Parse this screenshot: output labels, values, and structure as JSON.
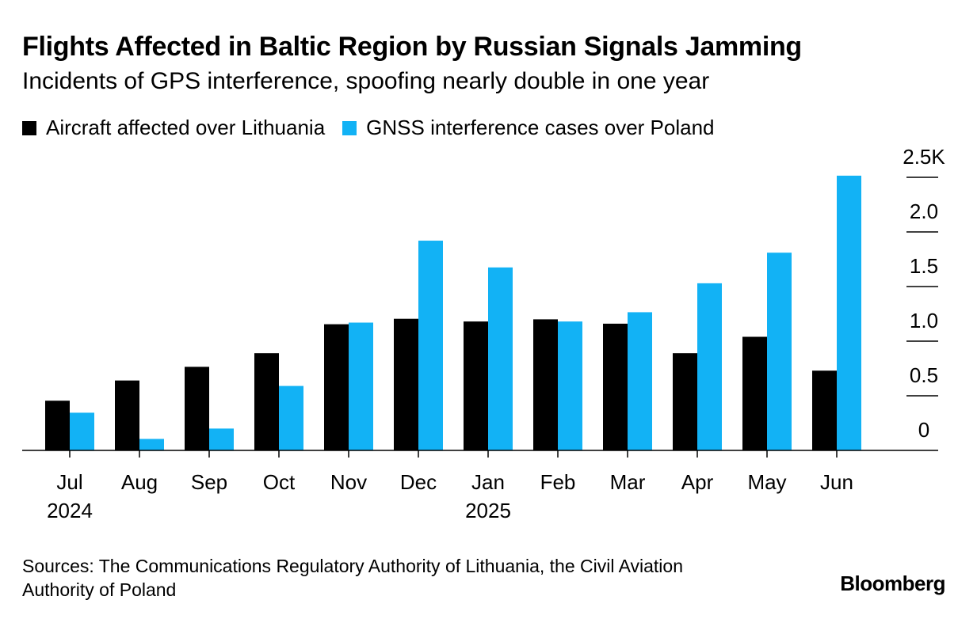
{
  "header": {
    "title": "Flights Affected in Baltic Region by Russian Signals Jamming",
    "subtitle": "Incidents of GPS interference, spoofing nearly double in one year"
  },
  "footer": {
    "source": "Sources: The Communications Regulatory Authority of Lithuania, the Civil Aviation Authority of Poland",
    "brand": "Bloomberg"
  },
  "colors": {
    "lithuania": "#000000",
    "poland": "#12b2f5"
  },
  "chart_data": {
    "type": "bar",
    "title": "Flights Affected in Baltic Region by Russian Signals Jamming",
    "subtitle": "Incidents of GPS interference, spoofing nearly double in one year",
    "categories": [
      "Jul",
      "Aug",
      "Sep",
      "Oct",
      "Nov",
      "Dec",
      "Jan",
      "Feb",
      "Mar",
      "Apr",
      "May",
      "Jun"
    ],
    "year_labels": [
      "2024",
      "",
      "",
      "",
      "",
      "",
      "2025",
      "",
      "",
      "",
      "",
      ""
    ],
    "series": [
      {
        "name": "Aircraft affected over Lithuania",
        "values": [
          455,
          640,
          765,
          890,
          1155,
          1205,
          1180,
          1200,
          1160,
          890,
          1040,
          730
        ]
      },
      {
        "name": "GNSS interference cases over Poland",
        "values": [
          345,
          105,
          200,
          590,
          1170,
          1920,
          1675,
          1180,
          1265,
          1530,
          1810,
          2515
        ]
      }
    ],
    "y_ticks": [
      "0",
      "0.5",
      "1.0",
      "1.5",
      "2.0",
      "2.5K"
    ],
    "ylim": [
      0,
      2500
    ],
    "y_axis_position": "right",
    "legend_position": "top-left",
    "grid": false
  }
}
